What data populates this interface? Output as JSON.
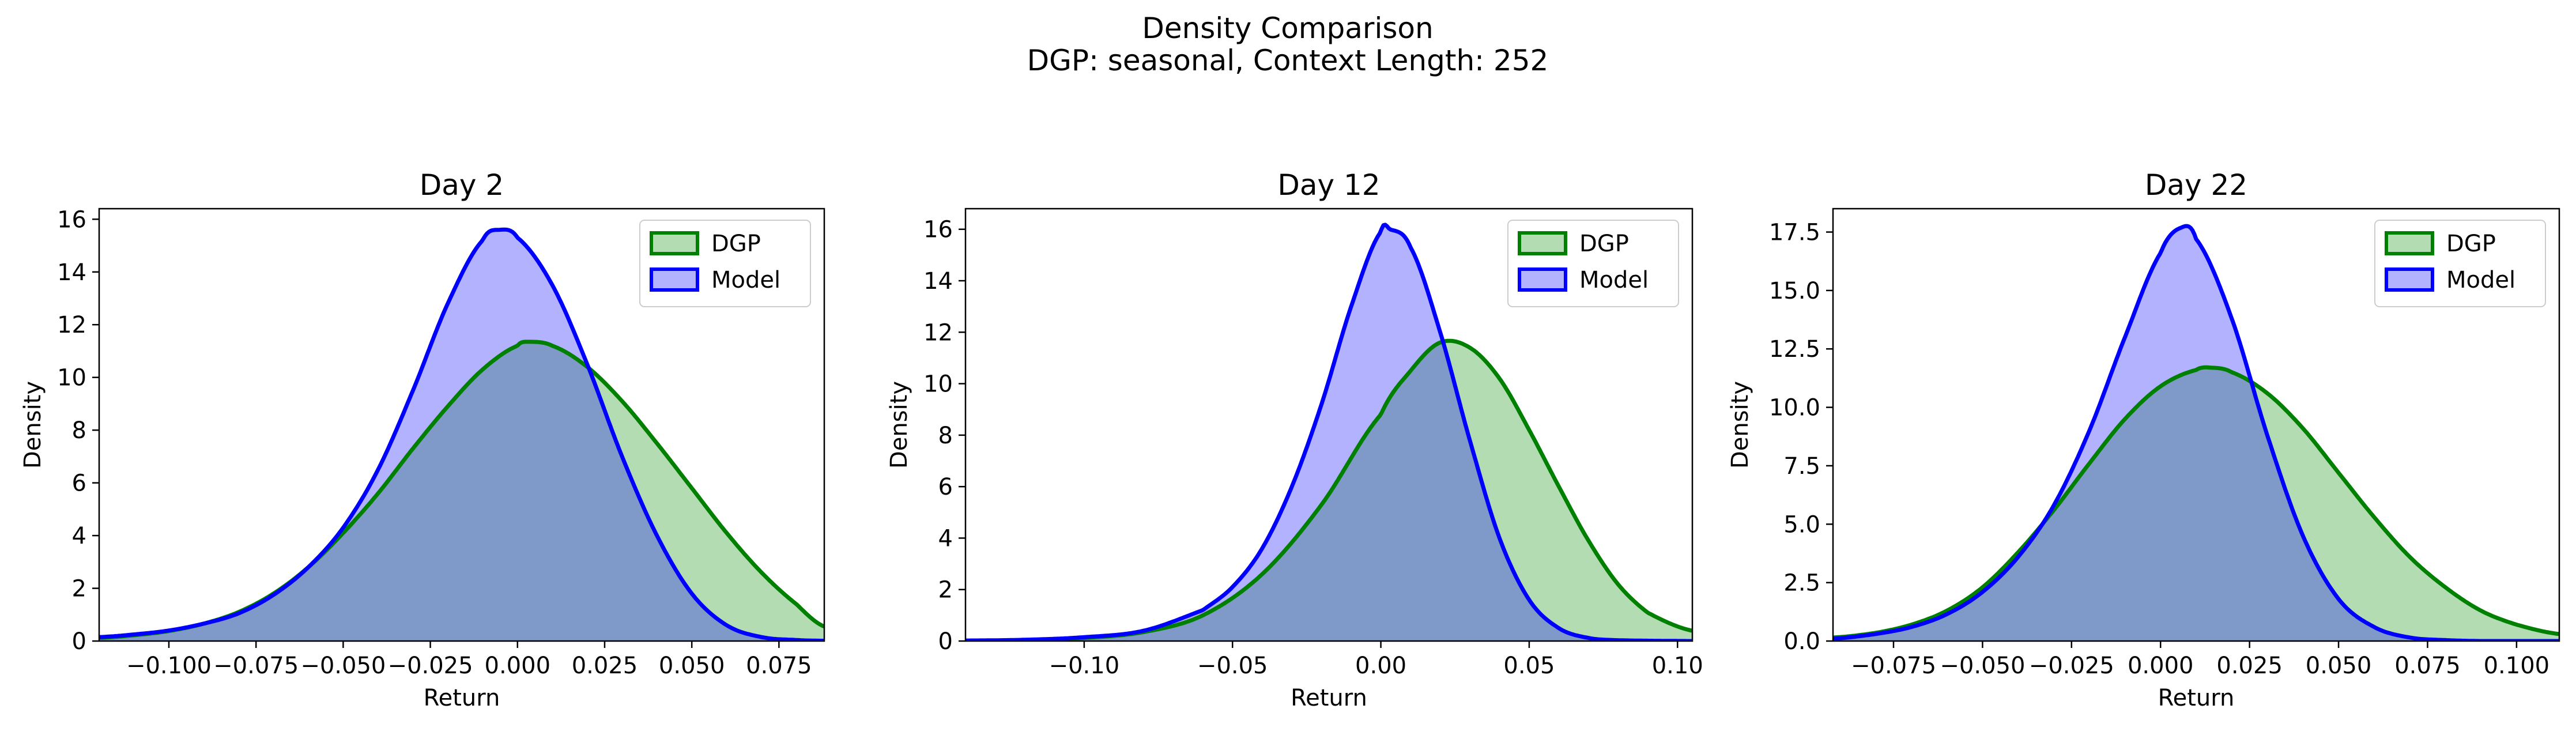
{
  "figure": {
    "title": "Density Comparison",
    "subtitle": "DGP: seasonal, Context Length: 252"
  },
  "colors": {
    "dgp_line": "#008000",
    "dgp_fill": "#b3dcb3",
    "model_line": "#0000ff",
    "model_fill": "#b2b2ff",
    "overlap_fill": "#7f99c8"
  },
  "chart_data": [
    {
      "type": "area",
      "title": "Day 2",
      "xlabel": "Return",
      "ylabel": "Density",
      "xlim": [
        -0.12,
        0.088
      ],
      "ylim": [
        0,
        16.4
      ],
      "xticks": [
        -0.1,
        -0.075,
        -0.05,
        -0.025,
        0.0,
        0.025,
        0.05,
        0.075
      ],
      "xtick_labels": [
        "−0.100",
        "−0.075",
        "−0.050",
        "−0.025",
        "0.000",
        "0.025",
        "0.050",
        "0.075"
      ],
      "yticks": [
        0,
        2,
        4,
        6,
        8,
        10,
        12,
        14,
        16
      ],
      "ytick_labels": [
        "0",
        "2",
        "4",
        "6",
        "8",
        "10",
        "12",
        "14",
        "16"
      ],
      "legend": "top-right",
      "series": [
        {
          "name": "DGP",
          "x": [
            -0.12,
            -0.11,
            -0.1,
            -0.09,
            -0.08,
            -0.07,
            -0.06,
            -0.05,
            -0.04,
            -0.03,
            -0.02,
            -0.01,
            0.0,
            0.003,
            0.01,
            0.02,
            0.03,
            0.04,
            0.05,
            0.06,
            0.07,
            0.08,
            0.088
          ],
          "y": [
            0.12,
            0.22,
            0.38,
            0.66,
            1.1,
            1.8,
            2.8,
            4.1,
            5.6,
            7.3,
            8.9,
            10.3,
            11.2,
            11.35,
            11.2,
            10.4,
            9.1,
            7.5,
            5.8,
            4.1,
            2.6,
            1.4,
            0.55
          ]
        },
        {
          "name": "Model",
          "x": [
            -0.12,
            -0.11,
            -0.1,
            -0.09,
            -0.08,
            -0.07,
            -0.06,
            -0.05,
            -0.04,
            -0.03,
            -0.02,
            -0.01,
            -0.005,
            0.0,
            0.01,
            0.02,
            0.03,
            0.04,
            0.05,
            0.06,
            0.07,
            0.08,
            0.088
          ],
          "y": [
            0.15,
            0.25,
            0.4,
            0.66,
            1.05,
            1.75,
            2.8,
            4.3,
            6.5,
            9.5,
            12.8,
            15.2,
            15.6,
            15.3,
            13.5,
            10.5,
            7.0,
            4.0,
            1.8,
            0.6,
            0.15,
            0.04,
            0.01
          ]
        }
      ]
    },
    {
      "type": "area",
      "title": "Day 12",
      "xlabel": "Return",
      "ylabel": "Density",
      "xlim": [
        -0.14,
        0.105
      ],
      "ylim": [
        0,
        16.8
      ],
      "xticks": [
        -0.1,
        -0.05,
        0.0,
        0.05,
        0.1
      ],
      "xtick_labels": [
        "−0.10",
        "−0.05",
        "0.00",
        "0.05",
        "0.10"
      ],
      "yticks": [
        0,
        2,
        4,
        6,
        8,
        10,
        12,
        14,
        16
      ],
      "ytick_labels": [
        "0",
        "2",
        "4",
        "6",
        "8",
        "10",
        "12",
        "14",
        "16"
      ],
      "legend": "top-right",
      "series": [
        {
          "name": "DGP",
          "x": [
            -0.14,
            -0.12,
            -0.1,
            -0.08,
            -0.06,
            -0.04,
            -0.02,
            0.0,
            0.01,
            0.02,
            0.03,
            0.04,
            0.05,
            0.06,
            0.07,
            0.08,
            0.09,
            0.105
          ],
          "y": [
            0.01,
            0.04,
            0.12,
            0.35,
            1.0,
            2.6,
            5.3,
            8.8,
            10.5,
            11.6,
            11.4,
            10.2,
            8.2,
            6.0,
            3.9,
            2.2,
            1.1,
            0.4
          ]
        },
        {
          "name": "Model",
          "x": [
            -0.14,
            -0.12,
            -0.1,
            -0.08,
            -0.06,
            -0.05,
            -0.04,
            -0.03,
            -0.02,
            -0.01,
            0.0,
            0.003,
            0.01,
            0.02,
            0.03,
            0.04,
            0.05,
            0.06,
            0.07,
            0.08,
            0.105
          ],
          "y": [
            0.02,
            0.05,
            0.15,
            0.4,
            1.2,
            2.1,
            3.6,
            6.0,
            9.2,
            13.0,
            15.9,
            16.0,
            15.3,
            12.0,
            7.8,
            4.0,
            1.6,
            0.5,
            0.12,
            0.03,
            0.0
          ]
        }
      ]
    },
    {
      "type": "area",
      "title": "Day 22",
      "xlabel": "Return",
      "ylabel": "Density",
      "xlim": [
        -0.092,
        0.112
      ],
      "ylim": [
        0,
        18.5
      ],
      "xticks": [
        -0.075,
        -0.05,
        -0.025,
        0.0,
        0.025,
        0.05,
        0.075,
        0.1
      ],
      "xtick_labels": [
        "−0.075",
        "−0.050",
        "−0.025",
        "0.000",
        "0.025",
        "0.050",
        "0.075",
        "0.100"
      ],
      "yticks": [
        0,
        2.5,
        5,
        7.5,
        10,
        12.5,
        15,
        17.5
      ],
      "ytick_labels": [
        "0.0",
        "2.5",
        "5.0",
        "7.5",
        "10.0",
        "12.5",
        "15.0",
        "17.5"
      ],
      "legend": "top-right",
      "series": [
        {
          "name": "DGP",
          "x": [
            -0.092,
            -0.08,
            -0.07,
            -0.06,
            -0.05,
            -0.04,
            -0.03,
            -0.02,
            -0.01,
            0.0,
            0.01,
            0.014,
            0.02,
            0.03,
            0.04,
            0.05,
            0.06,
            0.07,
            0.08,
            0.09,
            0.1,
            0.112
          ],
          "y": [
            0.15,
            0.35,
            0.7,
            1.3,
            2.3,
            3.8,
            5.6,
            7.6,
            9.5,
            10.9,
            11.6,
            11.7,
            11.5,
            10.6,
            9.1,
            7.2,
            5.3,
            3.6,
            2.3,
            1.3,
            0.7,
            0.3
          ]
        },
        {
          "name": "Model",
          "x": [
            -0.092,
            -0.08,
            -0.07,
            -0.06,
            -0.05,
            -0.04,
            -0.03,
            -0.02,
            -0.01,
            0.0,
            0.006,
            0.01,
            0.02,
            0.03,
            0.04,
            0.05,
            0.06,
            0.07,
            0.08,
            0.09,
            0.112
          ],
          "y": [
            0.1,
            0.3,
            0.6,
            1.15,
            2.1,
            3.6,
            5.8,
            9.0,
            13.0,
            16.6,
            17.7,
            17.2,
            13.8,
            8.8,
            4.5,
            1.8,
            0.6,
            0.15,
            0.04,
            0.0,
            0.0
          ]
        }
      ]
    }
  ]
}
